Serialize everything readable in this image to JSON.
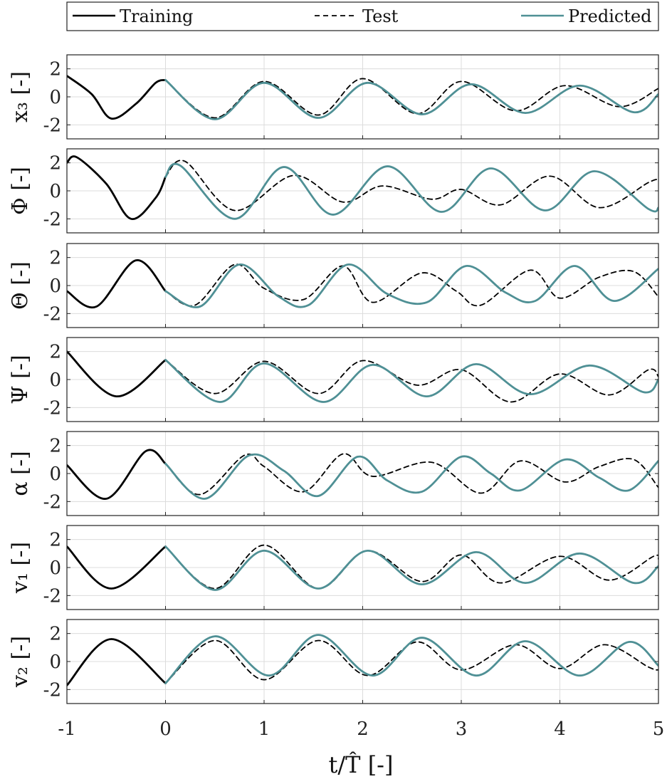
{
  "chart_data": {
    "type": "line",
    "xlabel": "t/T̂ [-]",
    "xlim": [
      -1,
      5
    ],
    "xticks": [
      -1,
      0,
      1,
      2,
      3,
      4,
      5
    ],
    "ylim": [
      -3,
      3
    ],
    "yticks": [
      -2,
      0,
      2
    ],
    "grid": true,
    "legend": {
      "placement": "top",
      "entries": [
        {
          "label": "Training",
          "style": "solid",
          "color": "#000000"
        },
        {
          "label": "Test",
          "style": "dashed",
          "color": "#000000"
        },
        {
          "label": "Predicted",
          "style": "solid",
          "color": "#4f9095"
        }
      ]
    },
    "panels": [
      {
        "id": "x3",
        "ylabel": "x₃ [-]",
        "training": {
          "x": [
            -1,
            -0.75,
            -0.55,
            -0.3,
            -0.1,
            0
          ],
          "y": [
            1.5,
            0.2,
            -1.55,
            -0.5,
            1.0,
            1.2
          ]
        },
        "test": {
          "x": [
            0,
            0.5,
            1.0,
            1.55,
            2.0,
            2.55,
            3.0,
            3.55,
            4.05,
            4.6,
            5.0
          ],
          "y": [
            1.2,
            -1.5,
            1.1,
            -1.3,
            1.3,
            -1.2,
            1.1,
            -1.0,
            0.8,
            -0.7,
            0.6
          ]
        },
        "predicted": {
          "x": [
            0,
            0.5,
            1.0,
            1.55,
            2.05,
            2.6,
            3.1,
            3.65,
            4.2,
            4.75,
            5.0
          ],
          "y": [
            1.2,
            -1.6,
            1.0,
            -1.5,
            1.0,
            -1.25,
            0.9,
            -1.15,
            0.8,
            -1.1,
            0.2
          ]
        }
      },
      {
        "id": "Phi",
        "ylabel": "Φ [-]",
        "training": {
          "x": [
            -1,
            -0.9,
            -0.6,
            -0.35,
            -0.1,
            0
          ],
          "y": [
            2.0,
            2.4,
            0.5,
            -2.0,
            -0.5,
            1.0
          ]
        },
        "test": {
          "x": [
            0,
            0.2,
            0.7,
            1.3,
            1.8,
            2.2,
            2.7,
            3.0,
            3.4,
            3.9,
            4.4,
            4.9,
            5.0
          ],
          "y": [
            1.0,
            2.1,
            -1.4,
            1.1,
            -0.8,
            0.35,
            -0.6,
            0.1,
            -1.0,
            1.05,
            -1.2,
            0.6,
            0.8
          ]
        },
        "predicted": {
          "x": [
            0,
            0.15,
            0.7,
            1.2,
            1.7,
            2.25,
            2.8,
            3.3,
            3.85,
            4.35,
            4.9,
            5.0
          ],
          "y": [
            1.0,
            1.8,
            -2.0,
            1.7,
            -1.7,
            1.75,
            -1.5,
            1.6,
            -1.4,
            1.4,
            -1.3,
            -1.2
          ]
        }
      },
      {
        "id": "Theta",
        "ylabel": "Θ [-]",
        "training": {
          "x": [
            -1,
            -0.7,
            -0.3,
            0
          ],
          "y": [
            -0.4,
            -1.5,
            1.8,
            -0.4
          ]
        },
        "test": {
          "x": [
            0,
            0.3,
            0.7,
            1.0,
            1.4,
            1.8,
            2.1,
            2.6,
            2.95,
            3.2,
            3.7,
            4.0,
            4.4,
            4.75,
            5.0
          ],
          "y": [
            -0.4,
            -1.4,
            1.5,
            -0.2,
            -1.0,
            1.4,
            -1.2,
            0.9,
            -0.4,
            -1.4,
            1.1,
            -0.9,
            0.6,
            1.0,
            -0.8
          ]
        },
        "predicted": {
          "x": [
            0,
            0.35,
            0.75,
            1.15,
            1.45,
            1.85,
            2.25,
            2.65,
            3.05,
            3.45,
            3.75,
            4.15,
            4.55,
            5.0
          ],
          "y": [
            -0.4,
            -1.5,
            1.5,
            -0.8,
            -1.4,
            1.5,
            -0.6,
            -1.2,
            1.4,
            -0.5,
            -1.1,
            1.4,
            -1.1,
            1.2
          ]
        }
      },
      {
        "id": "Psi",
        "ylabel": "Ψ [-]",
        "training": {
          "x": [
            -1,
            -0.5,
            0
          ],
          "y": [
            2.0,
            -1.2,
            1.4
          ]
        },
        "test": {
          "x": [
            0,
            0.5,
            1.0,
            1.55,
            2.0,
            2.55,
            3.0,
            3.5,
            4.0,
            4.5,
            4.9,
            5.0
          ],
          "y": [
            1.4,
            -1.0,
            1.3,
            -1.0,
            1.35,
            -0.4,
            0.7,
            -1.6,
            0.4,
            -1.1,
            0.7,
            0.2
          ]
        },
        "predicted": {
          "x": [
            0,
            0.55,
            1.0,
            1.6,
            2.1,
            2.65,
            3.15,
            3.7,
            4.3,
            4.85,
            5.0
          ],
          "y": [
            1.4,
            -1.6,
            1.15,
            -1.6,
            1.05,
            -1.2,
            1.1,
            -1.05,
            1.0,
            -0.9,
            0.0
          ]
        }
      },
      {
        "id": "alpha",
        "ylabel": "α [-]",
        "training": {
          "x": [
            -1,
            -0.6,
            -0.2,
            0
          ],
          "y": [
            0.6,
            -1.8,
            1.6,
            0.7
          ]
        },
        "test": {
          "x": [
            0,
            0.35,
            0.8,
            1.0,
            1.4,
            1.8,
            2.1,
            2.7,
            3.2,
            3.6,
            4.05,
            4.4,
            4.75,
            5.0
          ],
          "y": [
            0.7,
            -1.5,
            1.3,
            0.5,
            -1.3,
            1.4,
            -0.2,
            0.8,
            -1.4,
            0.9,
            -0.6,
            0.5,
            1.0,
            -1.0
          ]
        },
        "predicted": {
          "x": [
            0,
            0.4,
            0.85,
            1.2,
            1.55,
            1.95,
            2.25,
            2.6,
            3.0,
            3.3,
            3.6,
            4.05,
            4.4,
            4.7,
            5.0
          ],
          "y": [
            0.7,
            -1.8,
            1.3,
            0.2,
            -1.6,
            1.2,
            -0.5,
            -1.3,
            1.2,
            0.0,
            -1.2,
            1.0,
            -0.3,
            -1.2,
            0.9
          ]
        }
      },
      {
        "id": "v1",
        "ylabel": "v₁ [-]",
        "training": {
          "x": [
            -1,
            -0.55,
            0
          ],
          "y": [
            1.5,
            -1.5,
            1.5
          ]
        },
        "test": {
          "x": [
            0,
            0.5,
            1.0,
            1.55,
            2.05,
            2.6,
            3.0,
            3.4,
            4.0,
            4.5,
            4.95,
            5.0
          ],
          "y": [
            1.5,
            -1.5,
            1.6,
            -1.5,
            1.2,
            -1.0,
            0.9,
            -1.1,
            0.8,
            -0.9,
            0.8,
            0.6
          ]
        },
        "predicted": {
          "x": [
            0,
            0.5,
            1.0,
            1.55,
            2.05,
            2.6,
            3.15,
            3.65,
            4.2,
            4.75,
            5.0
          ],
          "y": [
            1.5,
            -1.6,
            1.2,
            -1.5,
            1.2,
            -1.2,
            1.1,
            -1.1,
            1.0,
            -1.1,
            0.1
          ]
        }
      },
      {
        "id": "v2",
        "ylabel": "v₂ [-]",
        "training": {
          "x": [
            -1,
            -0.55,
            0
          ],
          "y": [
            -1.7,
            1.6,
            -1.55
          ]
        },
        "test": {
          "x": [
            0,
            0.5,
            1.0,
            1.55,
            2.05,
            2.55,
            3.0,
            3.55,
            4.0,
            4.45,
            4.9,
            5.0
          ],
          "y": [
            -1.55,
            1.5,
            -1.3,
            1.5,
            -1.0,
            1.4,
            -0.6,
            1.2,
            -0.5,
            1.2,
            -0.4,
            -0.6
          ]
        },
        "predicted": {
          "x": [
            0,
            0.5,
            1.05,
            1.55,
            2.1,
            2.6,
            3.15,
            3.65,
            4.2,
            4.7,
            5.0
          ],
          "y": [
            -1.55,
            1.8,
            -1.0,
            1.9,
            -1.0,
            1.7,
            -1.0,
            1.45,
            -1.0,
            1.4,
            -0.3
          ]
        }
      }
    ]
  }
}
